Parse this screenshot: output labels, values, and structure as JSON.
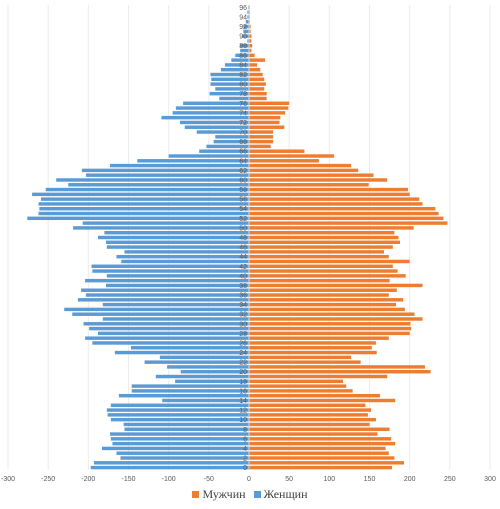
{
  "chart_data": {
    "type": "bar",
    "orientation": "horizontal",
    "x_ticks": [
      -300,
      -250,
      -200,
      -150,
      -100,
      -50,
      0,
      50,
      100,
      150,
      200,
      250,
      300
    ],
    "xlim": [
      -300,
      300
    ],
    "y_tick_labels": [
      0,
      2,
      4,
      6,
      8,
      10,
      12,
      14,
      16,
      18,
      20,
      22,
      24,
      26,
      28,
      30,
      32,
      34,
      36,
      38,
      40,
      42,
      44,
      46,
      48,
      50,
      52,
      54,
      56,
      58,
      60,
      62,
      64,
      66,
      68,
      70,
      72,
      74,
      76,
      78,
      80,
      82,
      84,
      86,
      88,
      90,
      92,
      94,
      96
    ],
    "ages": [
      0,
      1,
      2,
      3,
      4,
      5,
      6,
      7,
      8,
      9,
      10,
      11,
      12,
      13,
      14,
      15,
      16,
      17,
      18,
      19,
      20,
      21,
      22,
      23,
      24,
      25,
      26,
      27,
      28,
      29,
      30,
      31,
      32,
      33,
      34,
      35,
      36,
      37,
      38,
      39,
      40,
      41,
      42,
      43,
      44,
      45,
      46,
      47,
      48,
      49,
      50,
      51,
      52,
      53,
      54,
      55,
      56,
      57,
      58,
      59,
      60,
      61,
      62,
      63,
      64,
      65,
      66,
      67,
      68,
      69,
      70,
      71,
      72,
      73,
      74,
      75,
      76,
      77,
      78,
      79,
      80,
      81,
      82,
      83,
      84,
      85,
      86,
      87,
      88,
      89,
      90,
      91,
      92,
      93,
      94,
      95,
      96
    ],
    "series": [
      {
        "name": "Мужчин",
        "color": "#ED7D31",
        "values": [
          178,
          193,
          181,
          174,
          170,
          182,
          177,
          160,
          175,
          150,
          158,
          148,
          152,
          145,
          182,
          163,
          129,
          121,
          117,
          172,
          226,
          219,
          139,
          127,
          159,
          153,
          158,
          174,
          200,
          202,
          201,
          216,
          206,
          194,
          183,
          192,
          174,
          184,
          216,
          175,
          195,
          185,
          179,
          200,
          174,
          168,
          179,
          188,
          186,
          181,
          205,
          247,
          242,
          236,
          232,
          216,
          212,
          200,
          198,
          149,
          172,
          155,
          136,
          127,
          87,
          106,
          69,
          27,
          30,
          30,
          30,
          44,
          38,
          39,
          45,
          49,
          50,
          22,
          22,
          19,
          21,
          19,
          17,
          14,
          10,
          20,
          7,
          3,
          4,
          3,
          3,
          2,
          2,
          1,
          1,
          1,
          1
        ]
      },
      {
        "name": "Женщин",
        "color": "#5B9BD5",
        "values": [
          -197,
          -193,
          -160,
          -165,
          -183,
          -170,
          -172,
          -173,
          -155,
          -156,
          -172,
          -176,
          -177,
          -172,
          -108,
          -162,
          -146,
          -146,
          -92,
          -116,
          -85,
          -102,
          -130,
          -111,
          -167,
          -147,
          -195,
          -204,
          -188,
          -199,
          -206,
          -182,
          -220,
          -230,
          -182,
          -213,
          -203,
          -209,
          -178,
          -204,
          -177,
          -195,
          -196,
          -159,
          -165,
          -155,
          -177,
          -178,
          -188,
          -180,
          -219,
          -207,
          -276,
          -262,
          -261,
          -262,
          -259,
          -270,
          -253,
          -225,
          -240,
          -203,
          -208,
          -173,
          -139,
          -100,
          -62,
          -53,
          -44,
          -42,
          -65,
          -80,
          -86,
          -109,
          -95,
          -91,
          -82,
          -37,
          -49,
          -42,
          -48,
          -47,
          -48,
          -35,
          -30,
          -22,
          -17,
          -11,
          -11,
          -2,
          -8,
          -7,
          -7,
          -4,
          -2,
          -2,
          -1
        ]
      }
    ]
  },
  "legend": {
    "items": [
      {
        "label": "Мужчин",
        "color": "#ED7D31"
      },
      {
        "label": "Женщин",
        "color": "#5B9BD5"
      }
    ]
  }
}
